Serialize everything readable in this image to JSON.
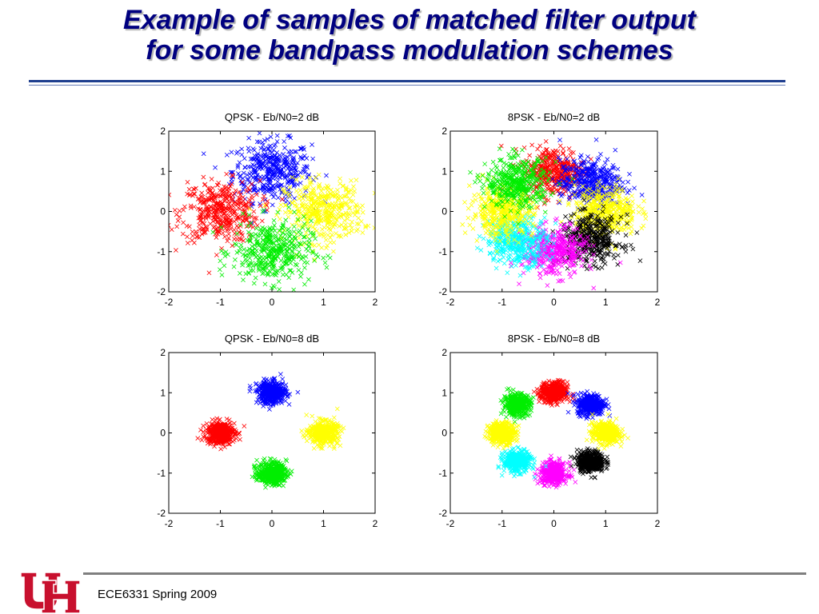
{
  "slide": {
    "title_line1": "Example of samples of matched filter output",
    "title_line2": "for some bandpass modulation schemes",
    "footer": "ECE6331 Spring 2009",
    "logo": "uh-logo-icon"
  },
  "colors": {
    "title": "#000080",
    "blue": "#0000ff",
    "red": "#ff0000",
    "yellow": "#ffff00",
    "green": "#00ee00",
    "magenta": "#ff00ff",
    "cyan": "#00ffff",
    "black": "#000000",
    "logo_red": "#c8102e"
  },
  "chart_data": [
    {
      "type": "scatter",
      "title": "QPSK - Eb/N0=2 dB",
      "marker": "x",
      "xlim": [
        -2,
        2
      ],
      "ylim": [
        -2,
        2
      ],
      "xticks": [
        "-2",
        "-1",
        "0",
        "1",
        "2"
      ],
      "yticks": [
        "-2",
        "-1",
        "0",
        "1",
        "2"
      ],
      "noise_sigma": 0.38,
      "series": [
        {
          "color": "#0000ff",
          "center": [
            0,
            1
          ]
        },
        {
          "color": "#ff0000",
          "center": [
            -1,
            0
          ]
        },
        {
          "color": "#ffff00",
          "center": [
            1,
            0
          ]
        },
        {
          "color": "#00ee00",
          "center": [
            0,
            -1
          ]
        }
      ]
    },
    {
      "type": "scatter",
      "title": "8PSK - Eb/N0=2 dB",
      "marker": "x",
      "xlim": [
        -2,
        2
      ],
      "ylim": [
        -2,
        2
      ],
      "xticks": [
        "-2",
        "-1",
        "0",
        "1",
        "2"
      ],
      "yticks": [
        "-2",
        "-1",
        "0",
        "1",
        "2"
      ],
      "noise_sigma": 0.3,
      "series": [
        {
          "color": "#ff0000",
          "center": [
            0,
            1
          ]
        },
        {
          "color": "#0000ff",
          "center": [
            0.71,
            0.71
          ]
        },
        {
          "color": "#ffff00",
          "center": [
            1,
            0
          ]
        },
        {
          "color": "#000000",
          "center": [
            0.71,
            -0.71
          ]
        },
        {
          "color": "#ff00ff",
          "center": [
            0,
            -1
          ]
        },
        {
          "color": "#00ffff",
          "center": [
            -0.71,
            -0.71
          ]
        },
        {
          "color": "#ffff00",
          "center": [
            -1,
            0
          ]
        },
        {
          "color": "#00ee00",
          "center": [
            -0.71,
            0.71
          ]
        }
      ]
    },
    {
      "type": "scatter",
      "title": "QPSK - Eb/N0=8 dB",
      "marker": "x",
      "xlim": [
        -2,
        2
      ],
      "ylim": [
        -2,
        2
      ],
      "xticks": [
        "-2",
        "-1",
        "0",
        "1",
        "2"
      ],
      "yticks": [
        "-2",
        "-1",
        "0",
        "1",
        "2"
      ],
      "noise_sigma": 0.14,
      "series": [
        {
          "color": "#0000ff",
          "center": [
            0,
            1
          ]
        },
        {
          "color": "#ff0000",
          "center": [
            -1,
            0
          ]
        },
        {
          "color": "#ffff00",
          "center": [
            1,
            0
          ]
        },
        {
          "color": "#00ee00",
          "center": [
            0,
            -1
          ]
        }
      ]
    },
    {
      "type": "scatter",
      "title": "8PSK - Eb/N0=8 dB",
      "marker": "x",
      "xlim": [
        -2,
        2
      ],
      "ylim": [
        -2,
        2
      ],
      "xticks": [
        "-2",
        "-1",
        "0",
        "1",
        "2"
      ],
      "yticks": [
        "-2",
        "-1",
        "0",
        "1",
        "2"
      ],
      "noise_sigma": 0.13,
      "series": [
        {
          "color": "#ff0000",
          "center": [
            0,
            1
          ]
        },
        {
          "color": "#0000ff",
          "center": [
            0.71,
            0.71
          ]
        },
        {
          "color": "#ffff00",
          "center": [
            1,
            0
          ]
        },
        {
          "color": "#000000",
          "center": [
            0.71,
            -0.71
          ]
        },
        {
          "color": "#ff00ff",
          "center": [
            0,
            -1
          ]
        },
        {
          "color": "#00ffff",
          "center": [
            -0.71,
            -0.71
          ]
        },
        {
          "color": "#ffff00",
          "center": [
            -1,
            0
          ]
        },
        {
          "color": "#00ee00",
          "center": [
            -0.71,
            0.71
          ]
        }
      ]
    }
  ]
}
